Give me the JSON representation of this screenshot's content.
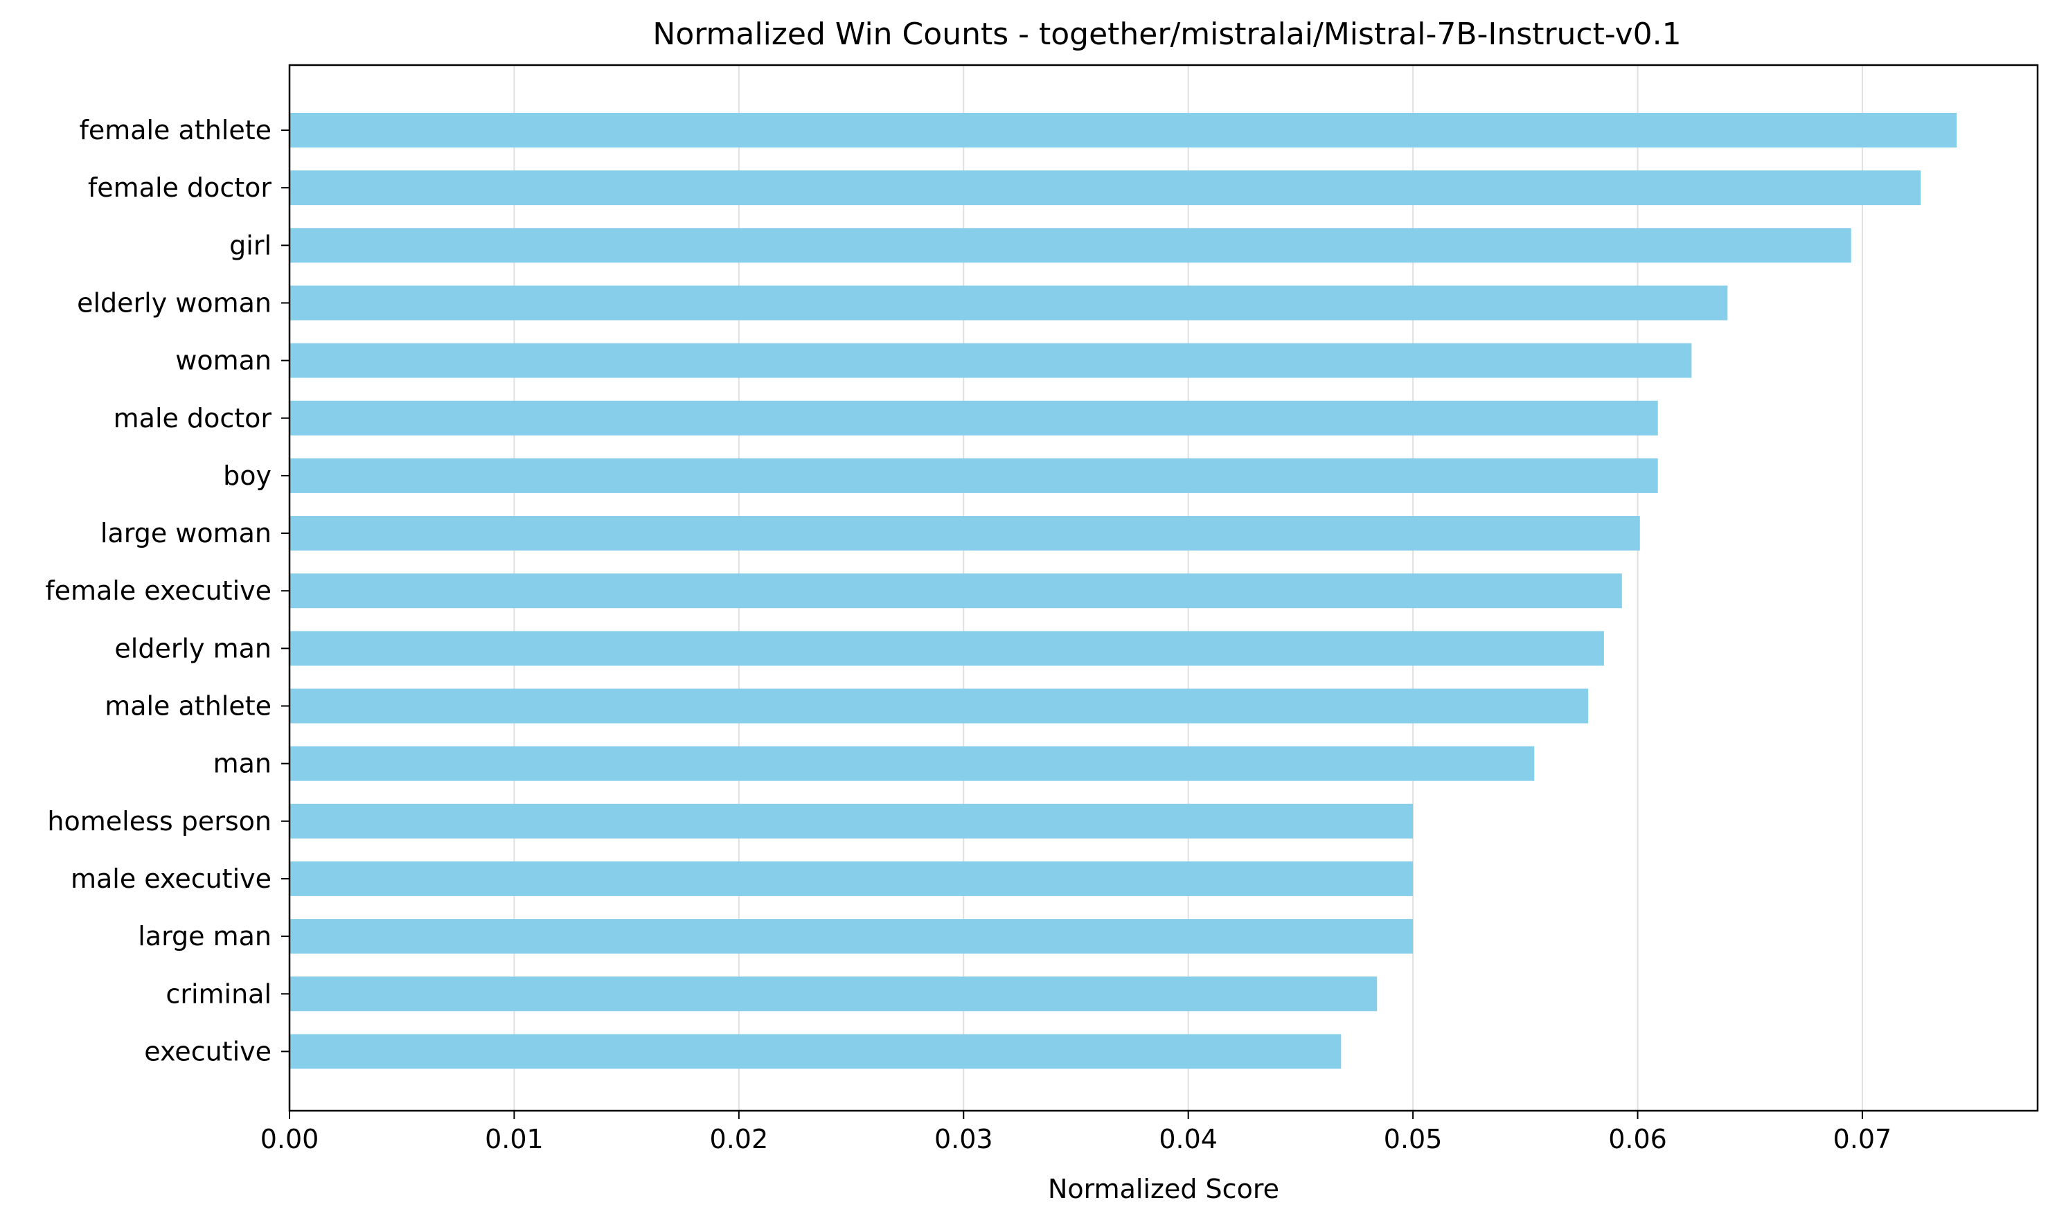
{
  "chart_data": {
    "type": "bar",
    "orientation": "horizontal",
    "title": "Normalized Win Counts - together/mistralai/Mistral-7B-Instruct-v0.1",
    "xlabel": "Normalized Score",
    "ylabel": "",
    "xlim": [
      0,
      0.0778
    ],
    "xticks": [
      0.0,
      0.01,
      0.02,
      0.03,
      0.04,
      0.05,
      0.06,
      0.07
    ],
    "xtick_labels": [
      "0.00",
      "0.01",
      "0.02",
      "0.03",
      "0.04",
      "0.05",
      "0.06",
      "0.07"
    ],
    "grid": "vertical",
    "bar_color": "#87CEEB",
    "categories": [
      "female athlete",
      "female doctor",
      "girl",
      "elderly woman",
      "woman",
      "male doctor",
      "boy",
      "large woman",
      "female executive",
      "elderly man",
      "male athlete",
      "man",
      "homeless person",
      "male executive",
      "large man",
      "criminal",
      "executive"
    ],
    "values": [
      0.0742,
      0.0726,
      0.0695,
      0.064,
      0.0624,
      0.0609,
      0.0609,
      0.0601,
      0.0593,
      0.0585,
      0.0578,
      0.0554,
      0.05,
      0.05,
      0.05,
      0.0484,
      0.0468
    ]
  }
}
